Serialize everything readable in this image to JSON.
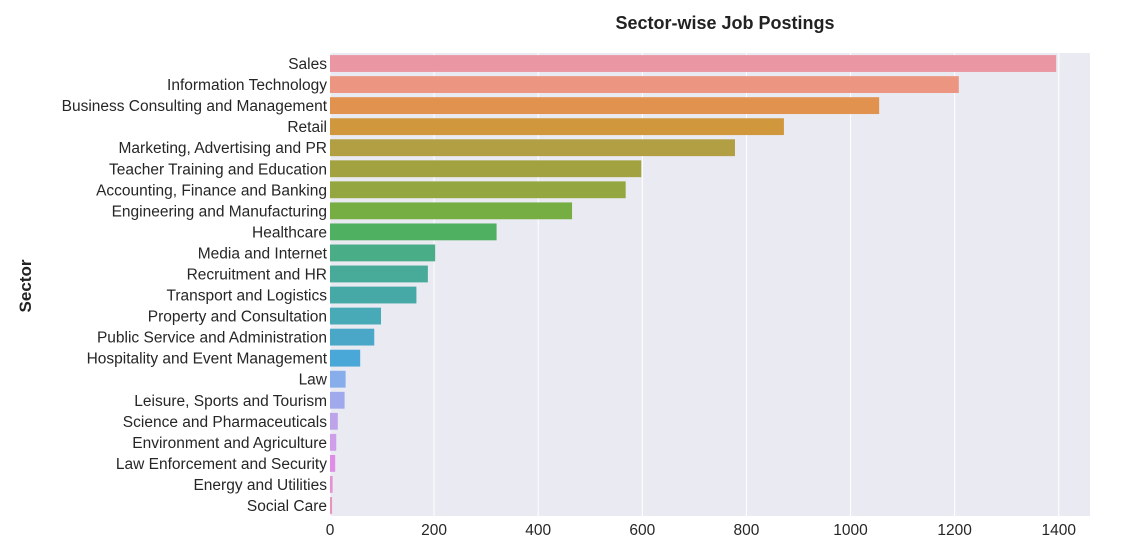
{
  "chart_data": {
    "type": "bar",
    "orientation": "horizontal",
    "title": "Sector-wise Job Postings",
    "xlabel": "",
    "ylabel": "Sector",
    "xlim": [
      0,
      1460
    ],
    "xticks": [
      "0",
      "200",
      "400",
      "600",
      "800",
      "1000",
      "1200",
      "1400"
    ],
    "grid": true,
    "categories": [
      "Sales",
      "Information Technology",
      "Business Consulting and Management",
      "Retail",
      "Marketing, Advertising and PR",
      "Teacher Training and Education",
      "Accounting, Finance and Banking",
      "Engineering and Manufacturing",
      "Healthcare",
      "Media and Internet",
      "Recruitment and HR",
      "Transport and Logistics",
      "Property and Consultation",
      "Public Service and Administration",
      "Hospitality and Event Management",
      "Law",
      "Leisure, Sports and Tourism",
      "Science and Pharmaceuticals",
      "Environment and Agriculture",
      "Law Enforcement and Security",
      "Energy and Utilities",
      "Social Care"
    ],
    "values": [
      1395,
      1208,
      1055,
      872,
      778,
      598,
      568,
      465,
      320,
      202,
      188,
      166,
      98,
      85,
      58,
      30,
      28,
      15,
      12,
      10,
      5,
      4
    ],
    "colors": [
      "#ea96a3",
      "#ec9682",
      "#e0924e",
      "#d0973c",
      "#b39f43",
      "#a3a241",
      "#94a63f",
      "#76ae43",
      "#4eb060",
      "#49ad88",
      "#48aa99",
      "#47a9a6",
      "#49aab7",
      "#4aa7c8",
      "#4aa8d8",
      "#87aeea",
      "#a1a9ed",
      "#bca3ea",
      "#cf9eea",
      "#de8ee4",
      "#e592d2",
      "#e895bd"
    ],
    "style": {
      "plot_background": "#eaeaf2",
      "grid_color": "#ffffff"
    }
  }
}
